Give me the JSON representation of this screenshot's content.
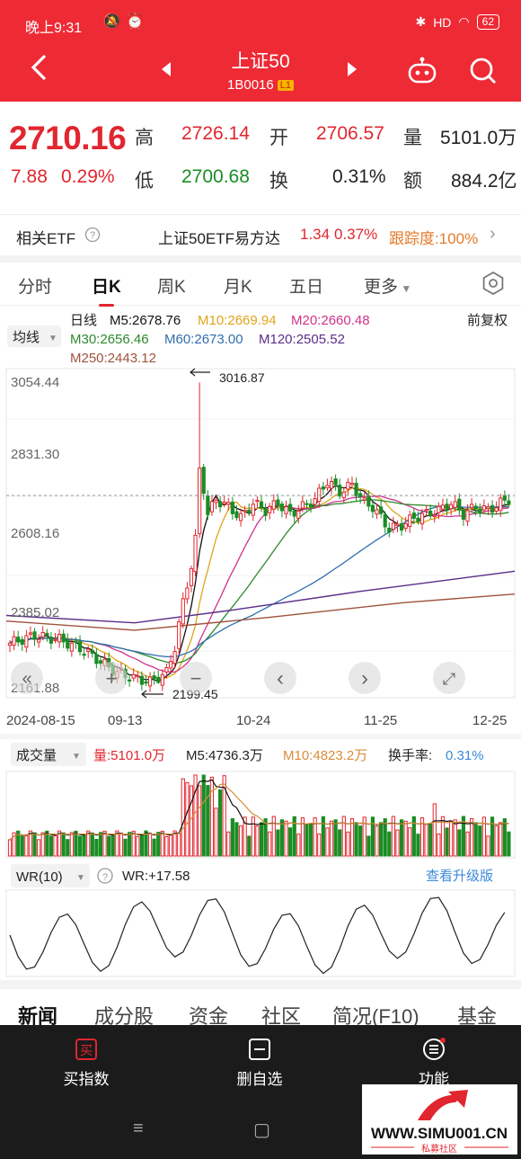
{
  "status_bar": {
    "time": "晚上9:31",
    "battery": "62",
    "signal": "HD"
  },
  "header": {
    "title": "上证50",
    "code": "1B0016",
    "level_badge": "L1"
  },
  "quote": {
    "price": "2710.16",
    "change": "7.88",
    "change_pct": "0.29%",
    "high_label": "高",
    "high": "2726.14",
    "low_label": "低",
    "low": "2700.68",
    "open_label": "开",
    "open": "2706.57",
    "turnover_label": "换",
    "turnover": "0.31%",
    "volume_label": "量",
    "volume": "5101.0万",
    "amount_label": "额",
    "amount": "884.2亿"
  },
  "etf": {
    "label": "相关ETF",
    "name": "上证50ETF易方达",
    "price": "1.34",
    "pct": "0.37%",
    "tracking": "跟踪度:100%"
  },
  "tabs": [
    "分时",
    "日K",
    "周K",
    "月K",
    "五日",
    "更多"
  ],
  "active_tab": "日K",
  "kline": {
    "indicator_select": "均线",
    "series_label": "日线",
    "adjust": "前复权",
    "ma": [
      {
        "name": "M5",
        "value": "2678.76",
        "color": "#111111"
      },
      {
        "name": "M10",
        "value": "2669.94",
        "color": "#e0a419"
      },
      {
        "name": "M20",
        "value": "2660.48",
        "color": "#d0338d"
      },
      {
        "name": "M30",
        "value": "2656.46",
        "color": "#2c8a2c"
      },
      {
        "name": "M60",
        "value": "2673.00",
        "color": "#2f6fb0"
      },
      {
        "name": "M120",
        "value": "2505.52",
        "color": "#5a2d8a"
      },
      {
        "name": "M250",
        "value": "2443.12",
        "color": "#a0523c"
      }
    ],
    "y_ticks": [
      "3054.44",
      "2831.30",
      "2608.16",
      "2385.02",
      "2161.88"
    ],
    "x_ticks": [
      "2024-08-15",
      "09-13",
      "10-24",
      "11-25",
      "12-25"
    ],
    "max_marker": "3016.87",
    "min_marker": "2199.45",
    "controls": [
      "«",
      "+",
      "−",
      "‹",
      "›",
      "⤢"
    ]
  },
  "volume_panel": {
    "select": "成交量",
    "volume": "量:5101.0万",
    "m5": "M5:4736.3万",
    "m10": "M10:4823.2万",
    "turnover_label": "换手率:",
    "turnover": "0.31%"
  },
  "wr_panel": {
    "select": "WR(10)",
    "value": "WR:+17.58",
    "upgrade": "查看升级版"
  },
  "bottom_tabs": [
    "新闻",
    "成分股",
    "资金",
    "社区",
    "简况(F10)",
    "基金"
  ],
  "bottom_bar": {
    "buy": "买指数",
    "remove": "删自选",
    "function": "功能",
    "buy_icon_char": "买"
  },
  "watermark": {
    "site": "WWW.SIMU001.CN",
    "sub": "私募社区"
  },
  "chart_data": {
    "type": "candlestick",
    "y_range": [
      2161.88,
      3054.44
    ],
    "x_range": [
      "2024-08-15",
      "12-25"
    ],
    "highlight": {
      "high": 3016.87,
      "low": 2199.45,
      "last": 2710.16
    },
    "ma_lines": [
      "M5",
      "M10",
      "M20",
      "M30",
      "M60",
      "M120",
      "M250"
    ]
  }
}
